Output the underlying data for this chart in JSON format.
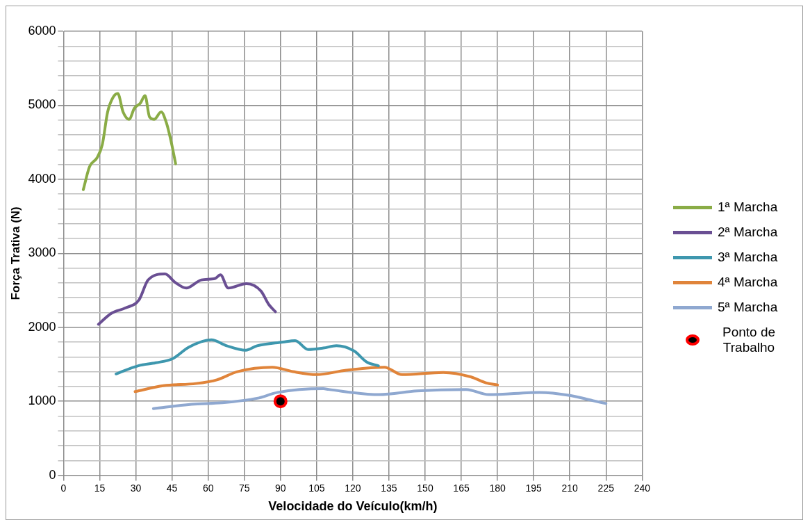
{
  "chart_data": {
    "type": "line",
    "xlabel": "Velocidade do Veículo(km/h)",
    "ylabel": "Força Trativa (N)",
    "xlim": [
      0,
      240
    ],
    "xticks": [
      0,
      15,
      30,
      45,
      60,
      75,
      90,
      105,
      120,
      135,
      150,
      165,
      180,
      195,
      210,
      225,
      240
    ],
    "ylim": [
      0,
      6000
    ],
    "yticks": [
      0,
      {
        "value": 200,
        "label": null
      },
      {
        "value": 400,
        "label": null
      },
      {
        "value": 600,
        "label": null
      },
      {
        "value": 800,
        "label": null
      },
      1000,
      {
        "value": 1200,
        "label": null
      },
      {
        "value": 1400,
        "label": null
      },
      {
        "value": 1600,
        "label": null
      },
      {
        "value": 1800,
        "label": null
      },
      2000,
      {
        "value": 2200,
        "label": null
      },
      {
        "value": 2400,
        "label": null
      },
      {
        "value": 2600,
        "label": null
      },
      {
        "value": 2800,
        "label": null
      },
      3000,
      {
        "value": 3200,
        "label": null
      },
      {
        "value": 3400,
        "label": null
      },
      {
        "value": 3600,
        "label": null
      },
      {
        "value": 3800,
        "label": null
      },
      4000,
      {
        "value": 4200,
        "label": null
      },
      {
        "value": 4400,
        "label": null
      },
      {
        "value": 4600,
        "label": null
      },
      {
        "value": 4800,
        "label": null
      },
      5000,
      {
        "value": 5200,
        "label": null
      },
      {
        "value": 5400,
        "label": null
      },
      {
        "value": 5600,
        "label": null
      },
      {
        "value": 5800,
        "label": null
      },
      6000
    ],
    "grid": true,
    "legend": "right",
    "marker": "none",
    "line_style": "solid",
    "series": [
      {
        "name": "1ª Marcha",
        "color": "#8aac46",
        "x": [
          8.2,
          10.8,
          13.9,
          16.1,
          18.3,
          20.6,
          22.5,
          24.7,
          27.2,
          29.4,
          31.9,
          33.8,
          35.7,
          37.6,
          40.5,
          42.7,
          44.9,
          46.5
        ],
        "values": [
          3860,
          4170,
          4290,
          4470,
          4910,
          5110,
          5160,
          4910,
          4810,
          4960,
          5030,
          5130,
          4840,
          4810,
          4910,
          4760,
          4470,
          4210
        ]
      },
      {
        "name": "2ª Marcha",
        "color": "#6a4f93",
        "x": [
          14.5,
          19.9,
          25.6,
          31.3,
          35.1,
          42.1,
          46.2,
          50.9,
          57.2,
          62.9,
          65.1,
          68.3,
          75.9,
          81.9,
          85.1,
          87.9
        ],
        "values": [
          2040,
          2190,
          2260,
          2370,
          2640,
          2720,
          2610,
          2530,
          2640,
          2660,
          2710,
          2530,
          2590,
          2490,
          2310,
          2210
        ]
      },
      {
        "name": "3ª Marcha",
        "color": "#3e97ae",
        "x": [
          21.8,
          31,
          38.3,
          45.5,
          51.9,
          61.3,
          67.7,
          75.6,
          80.3,
          91,
          96.1,
          101.5,
          107.8,
          113.2,
          120.5,
          125.8,
          130.6
        ],
        "values": [
          1370,
          1480,
          1520,
          1580,
          1730,
          1830,
          1750,
          1690,
          1750,
          1800,
          1820,
          1700,
          1720,
          1750,
          1680,
          1530,
          1480
        ]
      },
      {
        "name": "4ª Marcha",
        "color": "#e0843a",
        "x": [
          29.7,
          41.4,
          55,
          63.6,
          72.1,
          86.6,
          95.2,
          105,
          117.3,
          133.1,
          140.4,
          157.5,
          168.9,
          175.2,
          180
        ],
        "values": [
          1130,
          1210,
          1240,
          1290,
          1400,
          1460,
          1400,
          1360,
          1420,
          1460,
          1360,
          1390,
          1330,
          1250,
          1220
        ]
      },
      {
        "name": "5ª Marcha",
        "color": "#8fa8d0",
        "x": [
          37.3,
          53.1,
          65.8,
          80.3,
          88.9,
          107.8,
          110,
          130.9,
          146.7,
          167,
          176.4,
          197.3,
          210,
          219.4,
          225
        ],
        "values": [
          900,
          960,
          980,
          1040,
          1120,
          1170,
          1160,
          1090,
          1140,
          1160,
          1090,
          1120,
          1080,
          1010,
          970
        ]
      },
      {
        "name": "Ponto de Trabalho",
        "type": "scatter",
        "marker": "circle",
        "color": "#ff0000",
        "x": [
          90
        ],
        "values": [
          1000
        ]
      }
    ]
  }
}
